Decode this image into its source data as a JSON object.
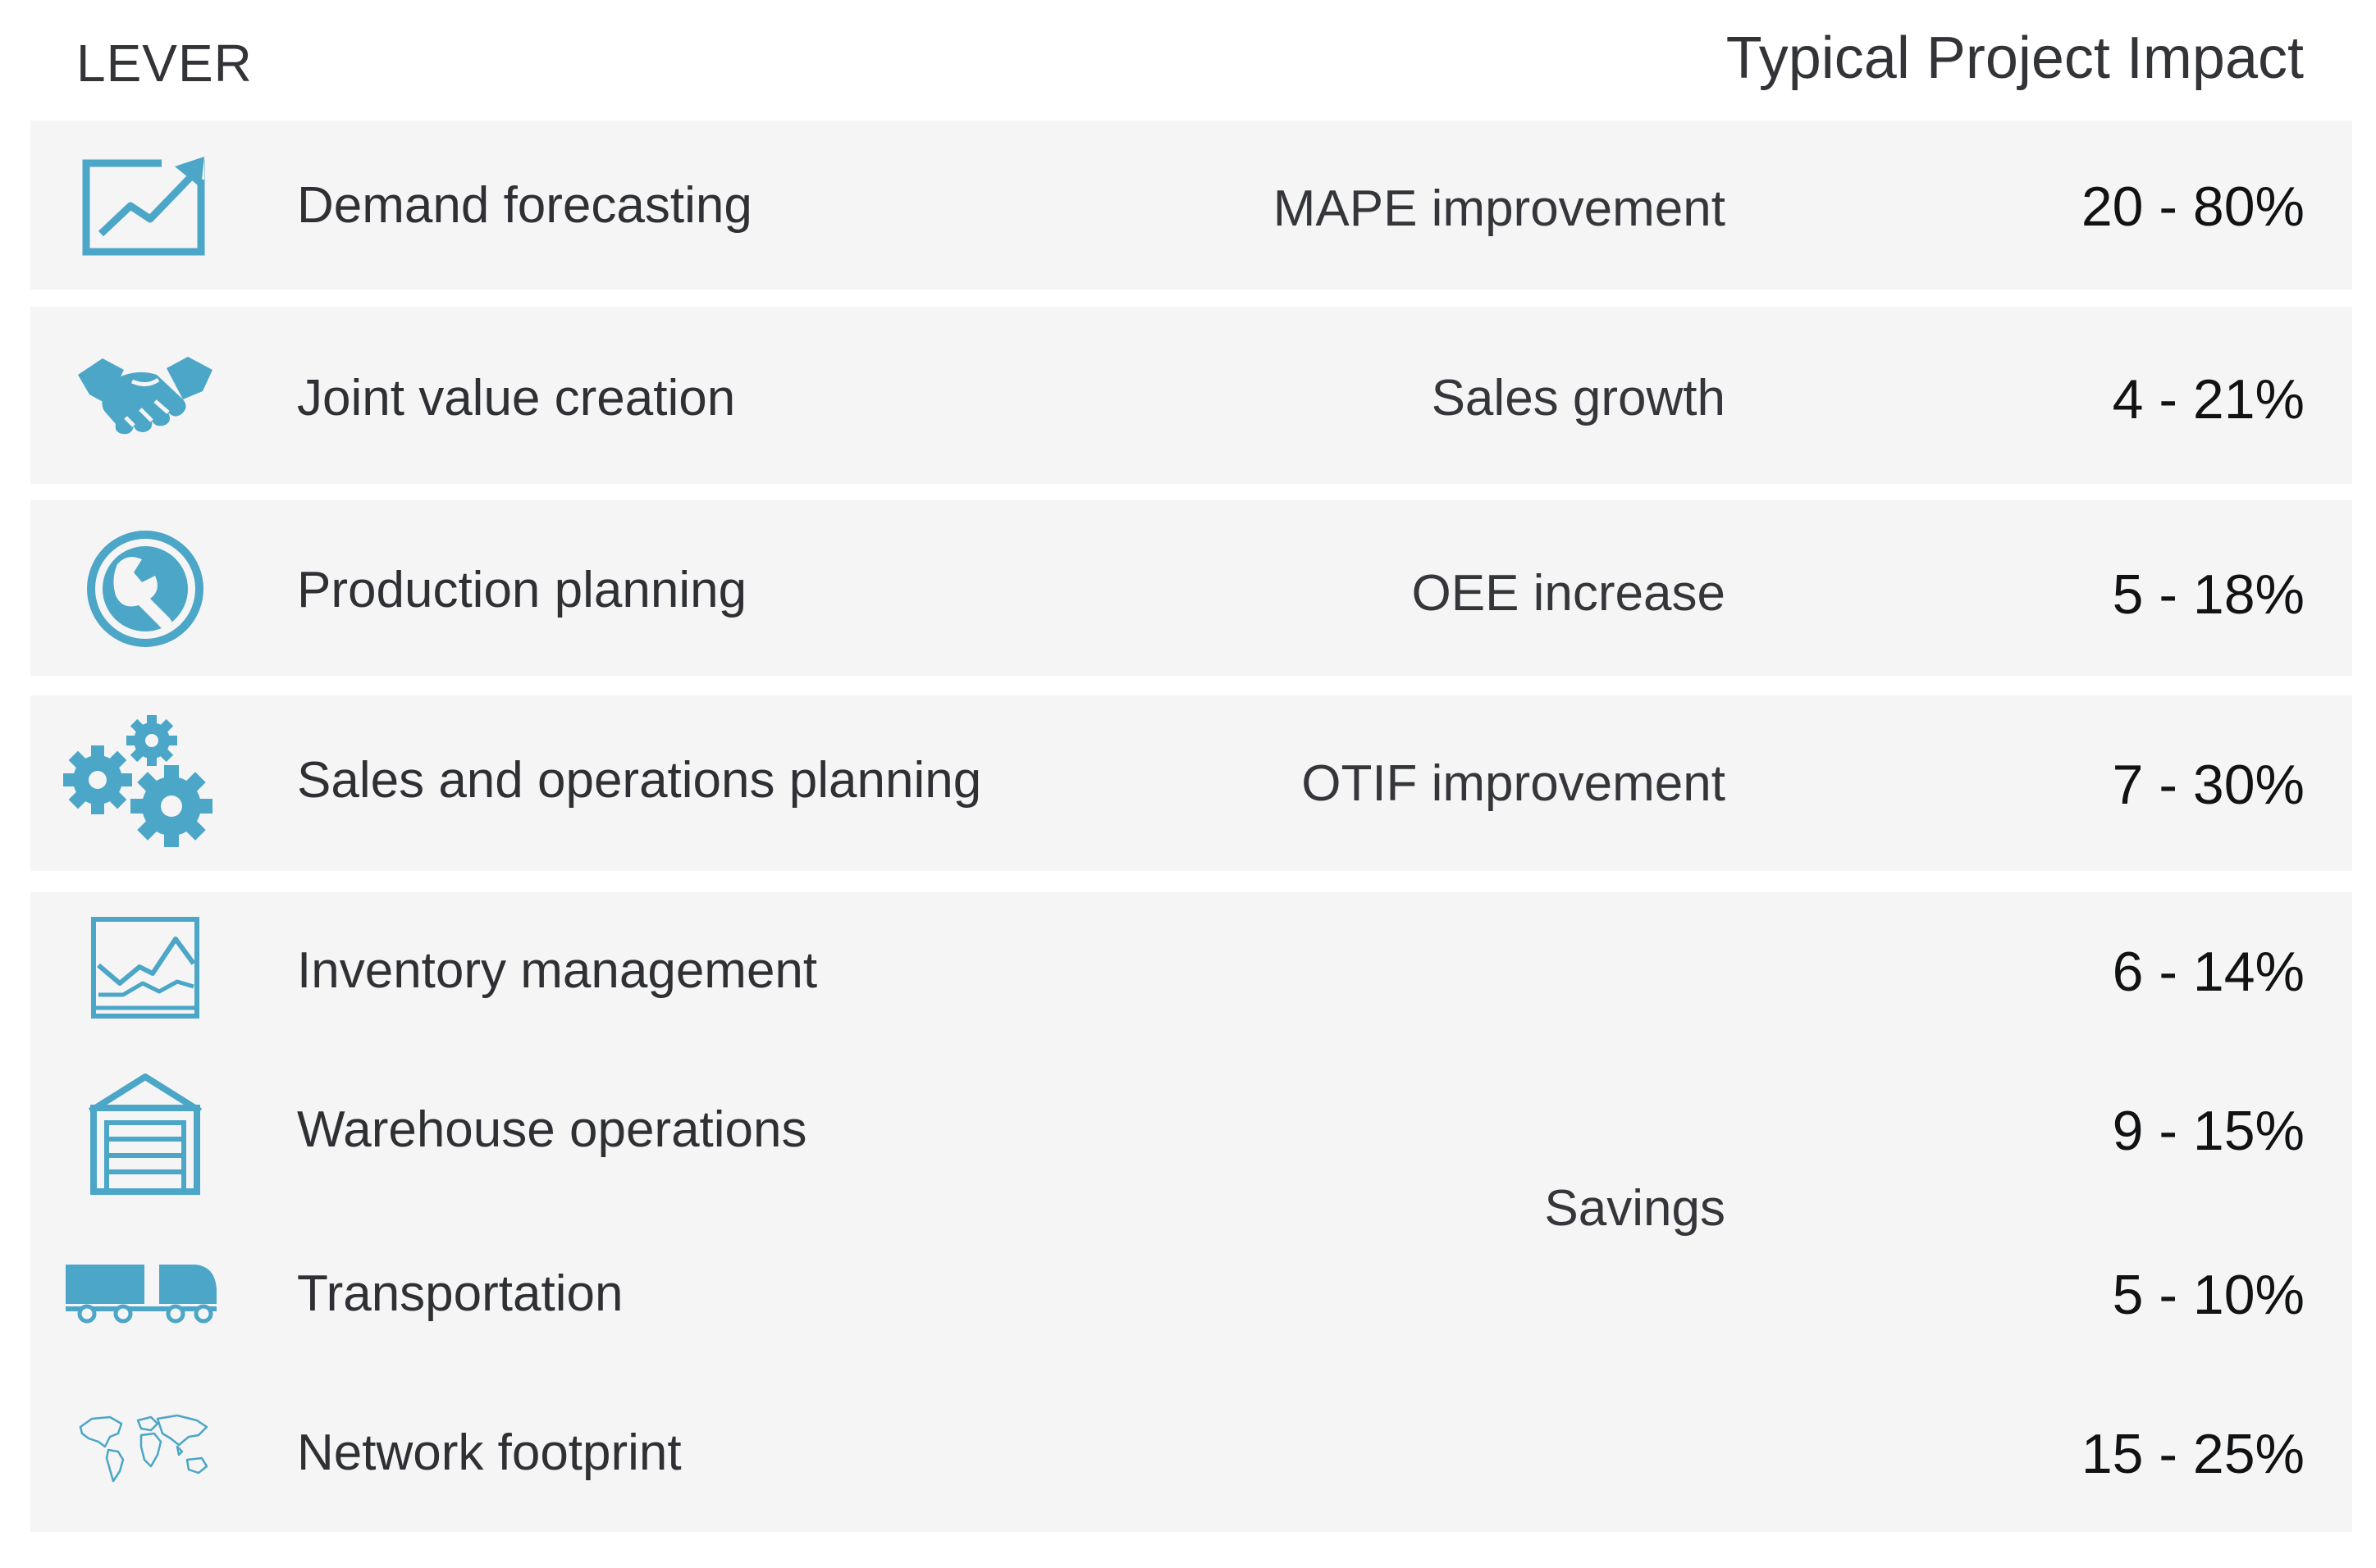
{
  "header": {
    "lever_label": "LEVER",
    "impact_label": "Typical Project Impact"
  },
  "colors": {
    "accent": "#4ba6c7",
    "panel": "#f5f5f5"
  },
  "levers": [
    {
      "icon": "chart-up-icon",
      "name": "Demand forecasting",
      "metric": "MAPE improvement",
      "value": "20 - 80%"
    },
    {
      "icon": "handshake-icon",
      "name": "Joint value creation",
      "metric": "Sales growth",
      "value": "4 - 21%"
    },
    {
      "icon": "wrench-icon",
      "name": "Production planning",
      "metric": "OEE increase",
      "value": "5 - 18%"
    },
    {
      "icon": "gears-icon",
      "name": "Sales and operations planning",
      "metric": "OTIF improvement",
      "value": "7 - 30%"
    },
    {
      "icon": "line-chart-icon",
      "name": "Inventory management",
      "value": "6 - 14%"
    },
    {
      "icon": "warehouse-icon",
      "name": "Warehouse operations",
      "value": "9 - 15%"
    },
    {
      "icon": "truck-icon",
      "name": "Transportation",
      "value": "5 - 10%"
    },
    {
      "icon": "world-map-icon",
      "name": "Network footprint",
      "value": "15 - 25%"
    }
  ],
  "grouped_metric": "Savings"
}
